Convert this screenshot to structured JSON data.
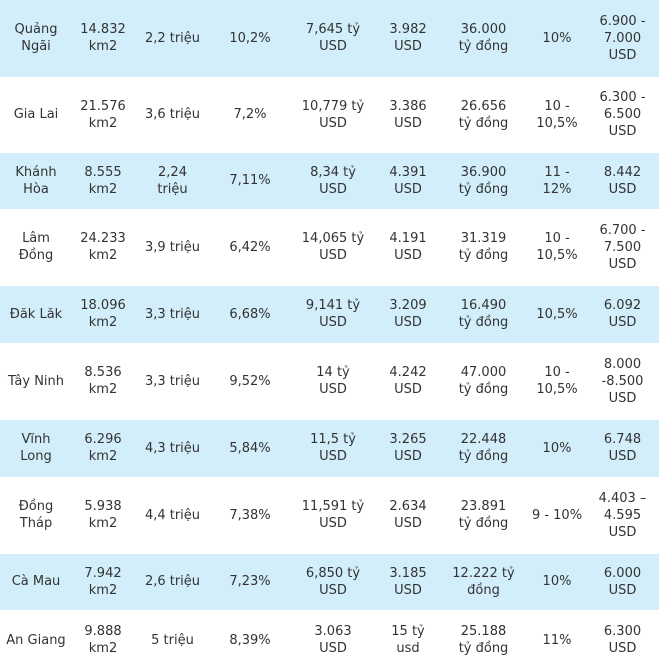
{
  "table": {
    "rows": [
      [
        "Quảng\nNgãi",
        "14.832\nkm2",
        "2,2 triệu",
        "10,2%",
        "7,645 tỷ\nUSD",
        "3.982\nUSD",
        "36.000\ntỷ đồng",
        "10%",
        "6.900 -\n7.000\nUSD"
      ],
      [
        "Gia Lai",
        "21.576\nkm2",
        "3,6 triệu",
        "7,2%",
        "10,779 tỷ\nUSD",
        "3.386\nUSD",
        "26.656\ntỷ đồng",
        "10 - 10,5%",
        "6.300 -\n6.500\nUSD"
      ],
      [
        "Khánh\nHòa",
        "8.555\nkm2",
        "2,24\ntriệu",
        "7,11%",
        "8,34 tỷ\nUSD",
        "4.391\nUSD",
        "36.900\ntỷ đồng",
        "11 - 12%",
        "8.442\nUSD"
      ],
      [
        "Lâm\nĐồng",
        "24.233\nkm2",
        "3,9 triệu",
        "6,42%",
        "14,065 tỷ\nUSD",
        "4.191\nUSD",
        "31.319\ntỷ đồng",
        "10 - 10,5%",
        "6.700 -\n7.500\nUSD"
      ],
      [
        "Đăk Lăk",
        "18.096\nkm2",
        "3,3 triệu",
        "6,68%",
        "9,141 tỷ\nUSD",
        "3.209\nUSD",
        "16.490\ntỷ đồng",
        "10,5%",
        "6.092\nUSD"
      ],
      [
        "Tây Ninh",
        "8.536\nkm2",
        "3,3 triệu",
        "9,52%",
        "14 tỷ\nUSD",
        "4.242\nUSD",
        "47.000\ntỷ đồng",
        "10 - 10,5%",
        "8.000\n-8.500\nUSD"
      ],
      [
        "Vĩnh\nLong",
        "6.296\nkm2",
        "4,3 triệu",
        "5,84%",
        "11,5 tỷ\nUSD",
        "3.265\nUSD",
        "22.448\ntỷ đồng",
        "10%",
        "6.748\nUSD"
      ],
      [
        "Đồng\nTháp",
        "5.938\nkm2",
        "4,4 triệu",
        "7,38%",
        "11,591 tỷ\nUSD",
        "2.634\nUSD",
        "23.891\ntỷ đồng",
        "9 - 10%",
        "4.403 –\n4.595\nUSD"
      ],
      [
        "Cà Mau",
        "7.942\nkm2",
        "2,6 triệu",
        "7,23%",
        "6,850 tỷ\nUSD",
        "3.185\nUSD",
        "12.222 tỷ\nđồng",
        "10%",
        "6.000\nUSD"
      ],
      [
        "An Giang",
        "9.888\nkm2",
        "5 triệu",
        "8,39%",
        "3.063\nUSD",
        "15 tỷ usd",
        "25.188\ntỷ đồng",
        "11%",
        "6.300\nUSD"
      ]
    ]
  }
}
